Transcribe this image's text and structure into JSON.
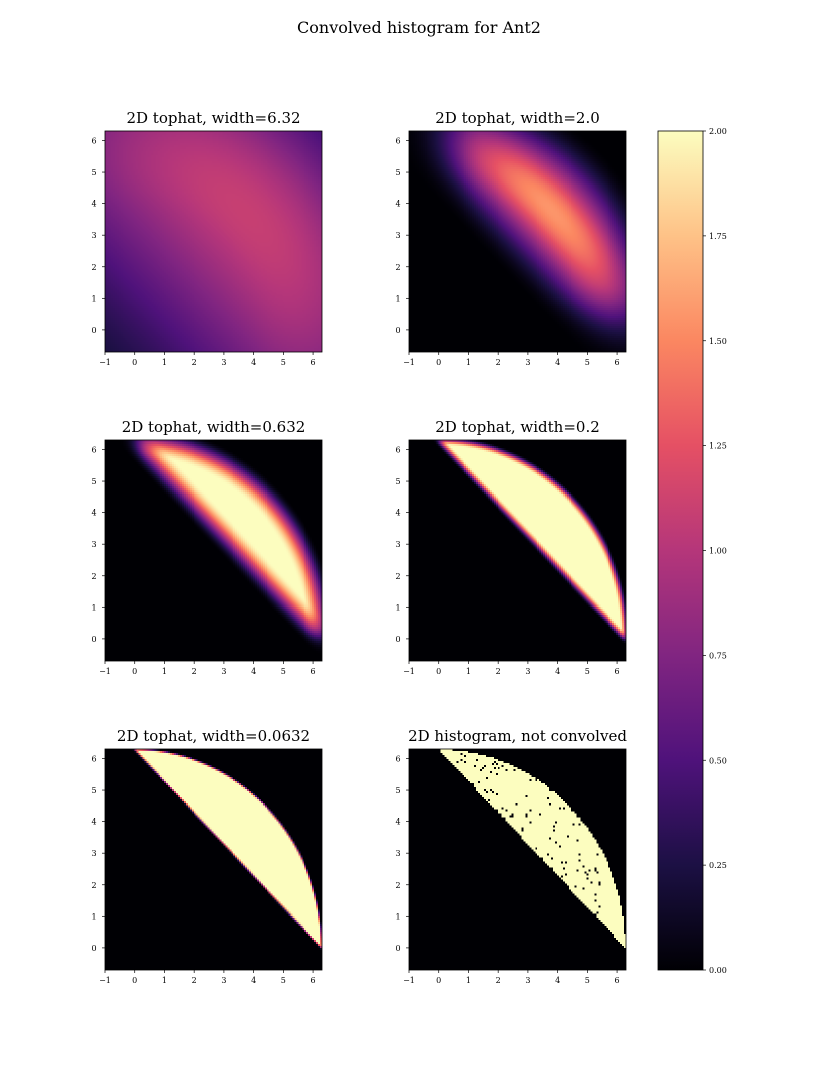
{
  "figure": {
    "title": "Convolved histogram for Ant2"
  },
  "chart_data": [
    {
      "type": "heatmap",
      "title": "2D tophat, width=6.32",
      "width": 6.32,
      "xlim": [
        -1,
        6.3
      ],
      "ylim": [
        -0.7,
        6.3
      ],
      "xticks": [
        "−1",
        "0",
        "1",
        "2",
        "3",
        "4",
        "5",
        "6"
      ],
      "yticks": [
        "0",
        "1",
        "2",
        "3",
        "4",
        "5",
        "6"
      ],
      "colormap": "magma",
      "clim": [
        0,
        2
      ],
      "support": "x >= 0, y >= 0, x + y >= 2π, x² + y² <= (2π)²"
    },
    {
      "type": "heatmap",
      "title": "2D tophat, width=2.0",
      "width": 2.0,
      "xlim": [
        -1,
        6.3
      ],
      "ylim": [
        -0.7,
        6.3
      ],
      "xticks": [
        "−1",
        "0",
        "1",
        "2",
        "3",
        "4",
        "5",
        "6"
      ],
      "yticks": [
        "0",
        "1",
        "2",
        "3",
        "4",
        "5",
        "6"
      ],
      "colormap": "magma",
      "clim": [
        0,
        2
      ]
    },
    {
      "type": "heatmap",
      "title": "2D tophat, width=0.632",
      "width": 0.632,
      "xlim": [
        -1,
        6.3
      ],
      "ylim": [
        -0.7,
        6.3
      ],
      "xticks": [
        "−1",
        "0",
        "1",
        "2",
        "3",
        "4",
        "5",
        "6"
      ],
      "yticks": [
        "0",
        "1",
        "2",
        "3",
        "4",
        "5",
        "6"
      ],
      "colormap": "magma",
      "clim": [
        0,
        2
      ]
    },
    {
      "type": "heatmap",
      "title": "2D tophat, width=0.2",
      "width": 0.2,
      "xlim": [
        -1,
        6.3
      ],
      "ylim": [
        -0.7,
        6.3
      ],
      "xticks": [
        "−1",
        "0",
        "1",
        "2",
        "3",
        "4",
        "5",
        "6"
      ],
      "yticks": [
        "0",
        "1",
        "2",
        "3",
        "4",
        "5",
        "6"
      ],
      "colormap": "magma",
      "clim": [
        0,
        2
      ]
    },
    {
      "type": "heatmap",
      "title": "2D tophat, width=0.0632",
      "width": 0.0632,
      "xlim": [
        -1,
        6.3
      ],
      "ylim": [
        -0.7,
        6.3
      ],
      "xticks": [
        "−1",
        "0",
        "1",
        "2",
        "3",
        "4",
        "5",
        "6"
      ],
      "yticks": [
        "0",
        "1",
        "2",
        "3",
        "4",
        "5",
        "6"
      ],
      "colormap": "magma",
      "clim": [
        0,
        2
      ]
    },
    {
      "type": "heatmap",
      "title": "2D histogram, not convolved",
      "width": 0,
      "xlim": [
        -1,
        6.3
      ],
      "ylim": [
        -0.7,
        6.3
      ],
      "xticks": [
        "−1",
        "0",
        "1",
        "2",
        "3",
        "4",
        "5",
        "6"
      ],
      "yticks": [
        "0",
        "1",
        "2",
        "3",
        "4",
        "5",
        "6"
      ],
      "colormap": "magma",
      "clim": [
        0,
        2
      ]
    }
  ],
  "colorbar": {
    "ticks": [
      "0.00",
      "0.25",
      "0.50",
      "0.75",
      "1.00",
      "1.25",
      "1.50",
      "1.75",
      "2.00"
    ],
    "values": [
      0,
      0.25,
      0.5,
      0.75,
      1.0,
      1.25,
      1.5,
      1.75,
      2.0
    ],
    "range": [
      0,
      2
    ],
    "colors": [
      "#000004",
      "#1c1044",
      "#4f127b",
      "#812581",
      "#b5367a",
      "#e55064",
      "#fb8761",
      "#fec287",
      "#fcfdbf"
    ]
  }
}
